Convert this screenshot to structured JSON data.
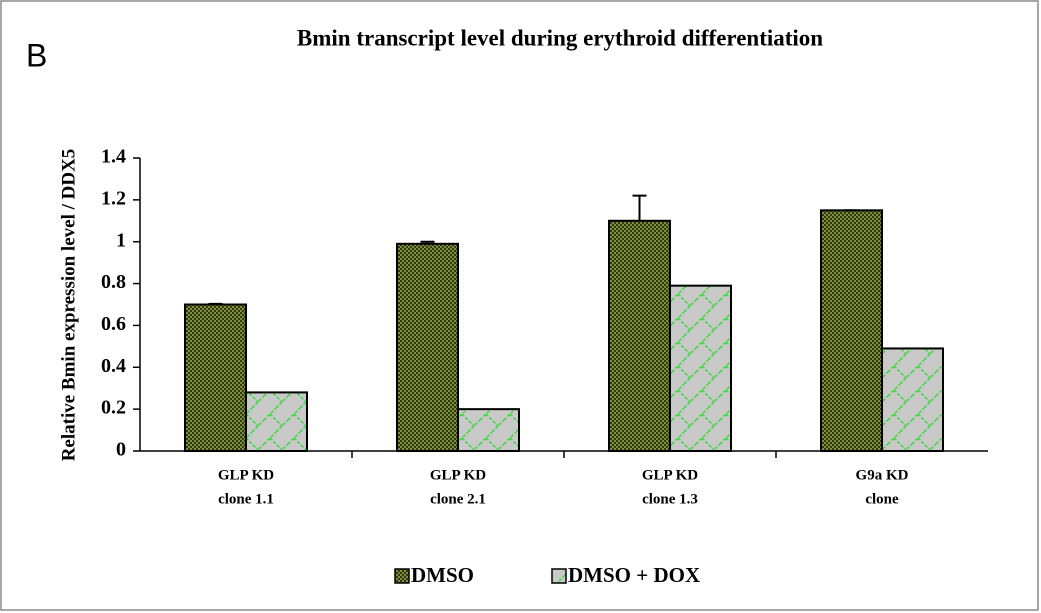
{
  "chart_data": {
    "type": "bar",
    "panel_label": "B",
    "title": "Bmin transcript level during erythroid differentiation",
    "y_label": "Relative Bmin expression level / DDX5",
    "categories": [
      [
        "GLP KD",
        "clone 1.1"
      ],
      [
        "GLP KD",
        "clone 2.1"
      ],
      [
        "GLP KD",
        "clone 1.3"
      ],
      [
        "G9a KD",
        "clone"
      ]
    ],
    "series": [
      {
        "name": "DMSO",
        "color": "#7f8f3c",
        "values": [
          0.7,
          0.99,
          1.1,
          1.15
        ],
        "errors": [
          0.003,
          0.01,
          0.12,
          0
        ]
      },
      {
        "name": "DMSO + DOX",
        "color": "#c9c9c9",
        "values": [
          0.28,
          0.2,
          0.79,
          0.49
        ]
      }
    ],
    "ylim": [
      0,
      1.4
    ],
    "yticks": [
      0,
      0.2,
      0.4,
      0.6,
      0.8,
      1,
      1.2,
      1.4
    ],
    "grid": false
  }
}
